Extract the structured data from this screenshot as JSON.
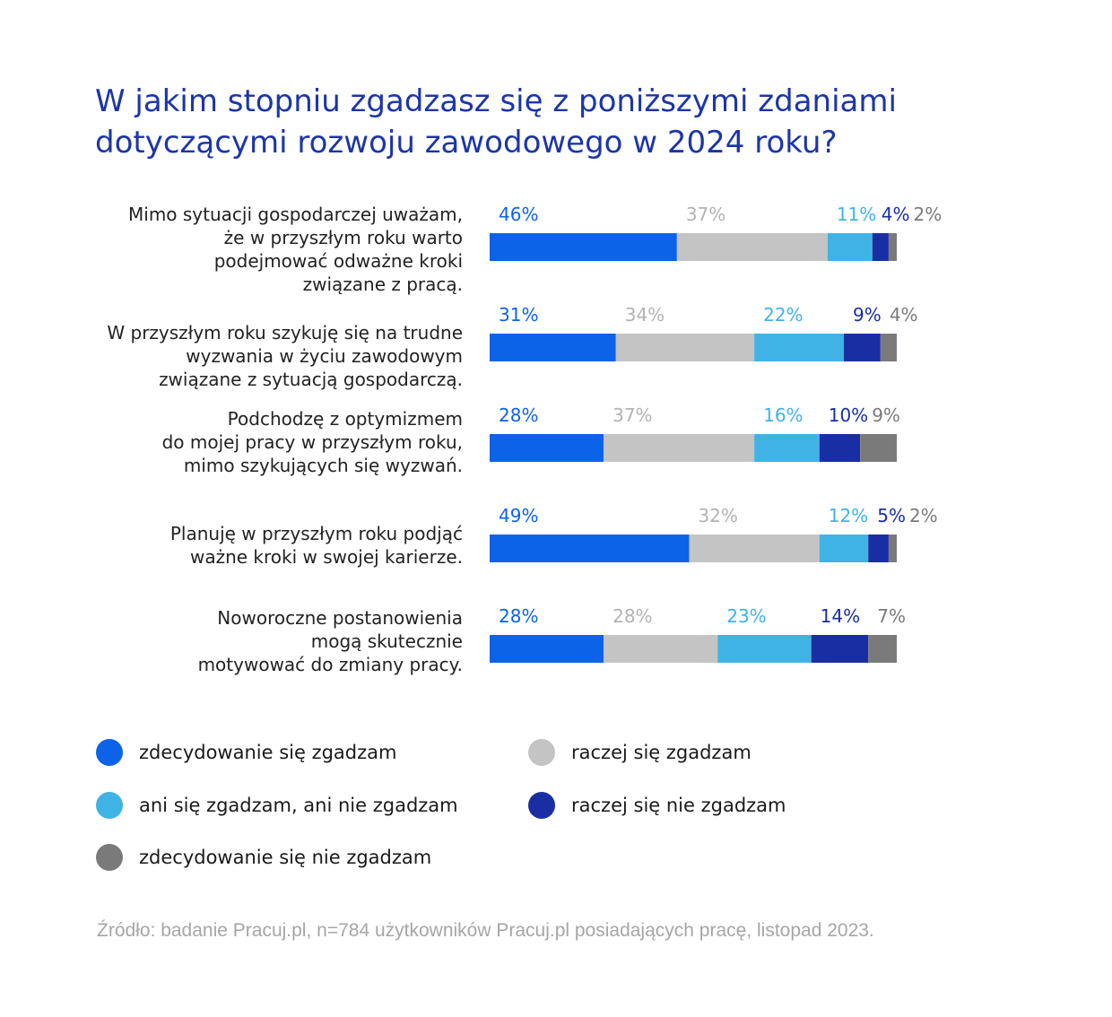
{
  "title_lines": [
    "W jakim stopniu zgadzasz się z poniższymi zdaniami",
    "dotyczącymi rozwoju zawodowego w 2024 roku?"
  ],
  "colors": {
    "zdecydowanie_zgadzam": "#0d63e8",
    "raczej_zgadzam": "#c4c4c4",
    "ani_ani": "#40b3e6",
    "raczej_nie": "#1a2ea3",
    "zdecydowanie_nie": "#7a7a7a",
    "title": "#1c35a8",
    "source": "#a6a6a6"
  },
  "row_labels": [
    [
      "Mimo sytuacji gospodarczej uważam,",
      "że w przyszłym roku warto",
      "podejmować odważne kroki",
      "związane z pracą."
    ],
    [
      "W przyszłym roku szykuję się na trudne",
      "wyzwania w życiu zawodowym",
      "związane z sytuacją gospodarczą."
    ],
    [
      "Podchodzę z optymizmem",
      "do mojej pracy w przyszłym roku,",
      "mimo szykujących się wyzwań."
    ],
    [
      "Planuję w przyszłym roku podjąć",
      "ważne kroki w swojej karierze."
    ],
    [
      "Noworoczne postanowienia",
      "mogą skutecznie",
      "motywować do zmiany pracy."
    ]
  ],
  "legend": [
    {
      "label": "zdecydowanie się zgadzam",
      "color_key": "zdecydowanie_zgadzam"
    },
    {
      "label": "raczej się zgadzam",
      "color_key": "raczej_zgadzam"
    },
    {
      "label": "ani się zgadzam, ani nie zgadzam",
      "color_key": "ani_ani"
    },
    {
      "label": "raczej się nie zgadzam",
      "color_key": "raczej_nie"
    },
    {
      "label": "zdecydowanie się nie zgadzam",
      "color_key": "zdecydowanie_nie"
    }
  ],
  "source": "Źródło: badanie Pracuj.pl, n=784 użytkowników Pracuj.pl posiadających pracę, listopad 2023.",
  "chart_data": {
    "type": "bar",
    "orientation": "horizontal",
    "stacked": true,
    "unit": "%",
    "categories": [
      "Mimo sytuacji gospodarczej uważam, że w przyszłym roku warto podejmować odważne kroki związane z pracą.",
      "W przyszłym roku szykuję się na trudne wyzwania w życiu zawodowym związane z sytuacją gospodarczą.",
      "Podchodzę z optymizmem do mojej pracy w przyszłym roku, mimo szykujących się wyzwań.",
      "Planuję w przyszłym roku podjąć ważne kroki w swojej karierze.",
      "Noworoczne postanowienia mogą skutecznie motywować do zmiany pracy."
    ],
    "series": [
      {
        "name": "zdecydowanie się zgadzam",
        "color": "#0d63e8",
        "label_color": "#0d63e8",
        "values": [
          46,
          31,
          28,
          49,
          28
        ]
      },
      {
        "name": "raczej się zgadzam",
        "color": "#c4c4c4",
        "label_color": "#b3b3b3",
        "values": [
          37,
          34,
          37,
          32,
          28
        ]
      },
      {
        "name": "ani się zgadzam, ani nie zgadzam",
        "color": "#40b3e6",
        "label_color": "#40b3e6",
        "values": [
          11,
          22,
          16,
          12,
          23
        ]
      },
      {
        "name": "raczej się nie zgadzam",
        "color": "#1a2ea3",
        "label_color": "#1a2ea3",
        "values": [
          4,
          9,
          10,
          5,
          14
        ]
      },
      {
        "name": "zdecydowanie się nie zgadzam",
        "color": "#7a7a7a",
        "label_color": "#7a7a7a",
        "values": [
          2,
          4,
          9,
          2,
          7
        ]
      }
    ],
    "xlim": [
      0,
      100
    ],
    "grid": false,
    "legend_position": "bottom"
  }
}
